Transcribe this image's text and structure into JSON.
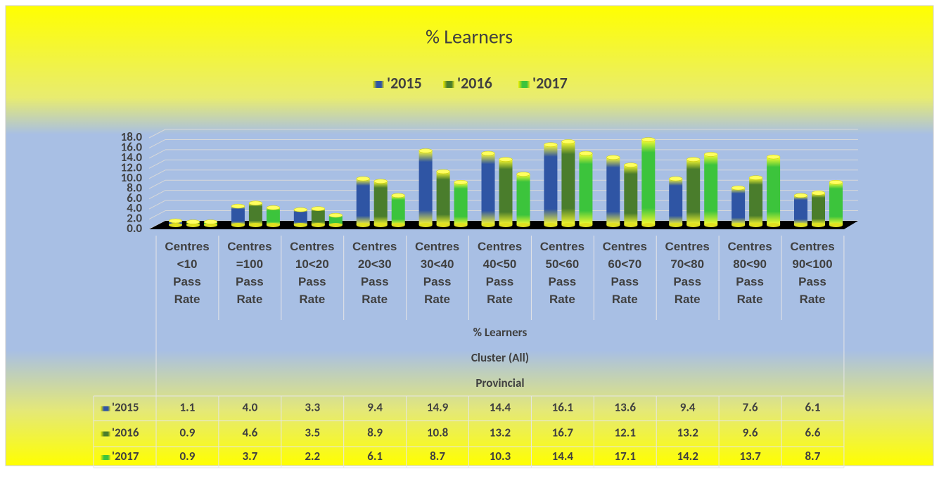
{
  "chart_data": {
    "type": "bar3d",
    "title": "% Learners",
    "table_titles": [
      "% Learners",
      "Cluster (All)",
      "Provincial"
    ],
    "categories": [
      "Centres <10 Pass Rate",
      "Centres =100 Pass Rate",
      "Centres 10<20 Pass Rate",
      "Centres 20<30 Pass Rate",
      "Centres 30<40 Pass Rate",
      "Centres 40<50 Pass Rate",
      "Centres 50<60 Pass Rate",
      "Centres 60<70 Pass Rate",
      "Centres 70<80 Pass Rate",
      "Centres 80<90 Pass Rate",
      "Centres 90<100 Pass Rate"
    ],
    "series": [
      {
        "name": "'2015",
        "color": "#2f55a4",
        "values": [
          1.1,
          4.0,
          3.3,
          9.4,
          14.9,
          14.4,
          16.1,
          13.6,
          9.4,
          7.6,
          6.1
        ],
        "value_labels": [
          "1.1",
          "4.0",
          "3.3",
          "9.4",
          "14.9",
          "14.4",
          "16.1",
          "13.6",
          "9.4",
          "7.6",
          "6.1"
        ]
      },
      {
        "name": "'2016",
        "color": "#4a7d2c",
        "values": [
          0.9,
          4.6,
          3.5,
          8.9,
          10.8,
          13.2,
          16.7,
          12.1,
          13.2,
          9.6,
          6.6
        ],
        "value_labels": [
          "0.9",
          "4.6",
          "3.5",
          "8.9",
          "10.8",
          "13.2",
          "16.7",
          "12.1",
          "13.2",
          "9.6",
          "6.6"
        ]
      },
      {
        "name": "'2017",
        "color": "#3cc43c",
        "values": [
          0.9,
          3.7,
          2.2,
          6.1,
          8.7,
          10.3,
          14.4,
          17.1,
          14.2,
          13.7,
          8.7
        ],
        "value_labels": [
          "0.9",
          "3.7",
          "2.2",
          "6.1",
          "8.7",
          "10.3",
          "14.4",
          "17.1",
          "14.2",
          "13.7",
          "8.7"
        ]
      }
    ],
    "ylim": [
      0,
      18
    ],
    "yticks": [
      {
        "value": 0,
        "label": "0.0"
      },
      {
        "value": 2,
        "label": "2.0"
      },
      {
        "value": 4,
        "label": "4.0"
      },
      {
        "value": 6,
        "label": "6.0"
      },
      {
        "value": 8,
        "label": "8.0"
      },
      {
        "value": 10,
        "label": "10.0"
      },
      {
        "value": 12,
        "label": "12.0"
      },
      {
        "value": 14,
        "label": "14.0"
      },
      {
        "value": 16,
        "label": "16.0"
      },
      {
        "value": 18,
        "label": "18.0"
      }
    ],
    "grid": true
  }
}
